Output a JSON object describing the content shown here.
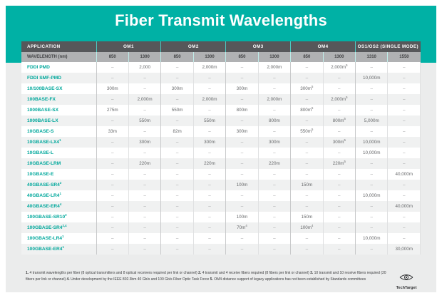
{
  "title": "Fiber Transmit Wavelengths",
  "chart_data": {
    "type": "table",
    "title": "Fiber Transmit Wavelengths",
    "superscript_marker": "^",
    "column_groups": [
      {
        "label": "APPLICATION",
        "span": 1
      },
      {
        "label": "OM1",
        "span": 2
      },
      {
        "label": "OM2",
        "span": 2
      },
      {
        "label": "OM3",
        "span": 2
      },
      {
        "label": "OM4",
        "span": 2
      },
      {
        "label": "OS1/OS2 (SINGLE MODE)",
        "span": 2
      }
    ],
    "wavelength_label": "WAVELENGTH (nm)",
    "wavelengths": [
      "850",
      "1300",
      "850",
      "1300",
      "850",
      "1300",
      "850",
      "1300",
      "1310",
      "1550"
    ],
    "rows": [
      {
        "application": "FDDI PMD",
        "values": [
          "–",
          "2,000",
          "–",
          "2,000m",
          "–",
          "2,000m",
          "–",
          "2,000m^5",
          "–",
          "–"
        ]
      },
      {
        "application": "FDDI SMF-PMD",
        "values": [
          "–",
          "–",
          "–",
          "–",
          "–",
          "–",
          "–",
          "–",
          "10,000m",
          "–"
        ]
      },
      {
        "application": "10/100BASE-SX",
        "values": [
          "300m",
          "–",
          "300m",
          "–",
          "300m",
          "–",
          "300m^5",
          "–",
          "–",
          "–"
        ]
      },
      {
        "application": "100BASE-FX",
        "values": [
          "–",
          "2,000m",
          "–",
          "2,000m",
          "–",
          "2,000m",
          "–",
          "2,000m^5",
          "–",
          "–"
        ]
      },
      {
        "application": "1000BASE-SX",
        "values": [
          "275m",
          "–",
          "550m",
          "–",
          "800m",
          "–",
          "800m^5",
          "–",
          "–",
          "–"
        ]
      },
      {
        "application": "1000BASE-LX",
        "values": [
          "–",
          "550m",
          "–",
          "550m",
          "–",
          "800m",
          "–",
          "800m^5",
          "5,000m",
          "–"
        ]
      },
      {
        "application": "10GBASE-S",
        "values": [
          "33m",
          "–",
          "82m",
          "–",
          "300m",
          "–",
          "550m^5",
          "–",
          "–",
          "–"
        ]
      },
      {
        "application": "10GBASE-LX4^1",
        "values": [
          "–",
          "300m",
          "–",
          "300m",
          "–",
          "300m",
          "–",
          "300m^5",
          "10,000m",
          "–"
        ]
      },
      {
        "application": "10GBASE-L",
        "values": [
          "–",
          "–",
          "–",
          "–",
          "–",
          "–",
          "–",
          "–",
          "10,000m",
          "–"
        ]
      },
      {
        "application": "10GBASE-LRM",
        "values": [
          "–",
          "220m",
          "–",
          "220m",
          "–",
          "220m",
          "–",
          "220m^5",
          "–",
          "–"
        ]
      },
      {
        "application": "10GBASE-E",
        "values": [
          "–",
          "–",
          "–",
          "–",
          "–",
          "–",
          "–",
          "–",
          "–",
          "40,000m"
        ]
      },
      {
        "application": "40GBASE-SR4^2",
        "values": [
          "–",
          "–",
          "–",
          "–",
          "100m",
          "–",
          "150m",
          "–",
          "–",
          "–"
        ]
      },
      {
        "application": "40GBASE-LR4^1",
        "values": [
          "–",
          "–",
          "–",
          "–",
          "–",
          "–",
          "–",
          "–",
          "10,000m",
          "–"
        ]
      },
      {
        "application": "40GBASE-ER4^4",
        "values": [
          "–",
          "–",
          "–",
          "–",
          "–",
          "–",
          "–",
          "–",
          "–",
          "40,000m"
        ]
      },
      {
        "application": "100GBASE-SR10^3",
        "values": [
          "–",
          "–",
          "–",
          "–",
          "100m",
          "–",
          "150m",
          "–",
          "–",
          "–"
        ]
      },
      {
        "application": "100GBASE-SR4^2,4",
        "values": [
          "–",
          "–",
          "–",
          "–",
          "70m^4",
          "–",
          "100m^4",
          "–",
          "–",
          "–"
        ]
      },
      {
        "application": "100GBASE-LR4^1",
        "values": [
          "–",
          "–",
          "–",
          "–",
          "–",
          "–",
          "–",
          "–",
          "10,000m",
          "–"
        ]
      },
      {
        "application": "100GBASE-ER4^1",
        "values": [
          "–",
          "–",
          "–",
          "–",
          "–",
          "–",
          "–",
          "–",
          "–",
          "30,000m"
        ]
      }
    ]
  },
  "footnotes": [
    {
      "num": "1.",
      "text": "4 transmit wavelengths per fiber (8 optical transmitters and 8 optical receivers required per link or channel)"
    },
    {
      "num": "2.",
      "text": "4 transmit and 4 receive fibers required (8 fibers per link or channel)"
    },
    {
      "num": "3.",
      "text": "10 transmit and 10 receive fibers required (20 fibers per link or channel)"
    },
    {
      "num": "4.",
      "text": "Under development by the IEEE 802.3bm 40 Gb/s and 100 Gb/s Fiber Optic Task Force"
    },
    {
      "num": "5.",
      "text": "OM4 distance support of legacy applications has not been established by Standards committees"
    }
  ],
  "logo": {
    "text": "TechTarget"
  },
  "colors": {
    "teal": "#00b1a5",
    "header_dark": "#56575a",
    "header_light": "#b0b1b3",
    "row_alt": "#f0f1f1",
    "page_bg": "#ebecec",
    "app_text": "#00a89c",
    "value_text": "#66686a"
  }
}
